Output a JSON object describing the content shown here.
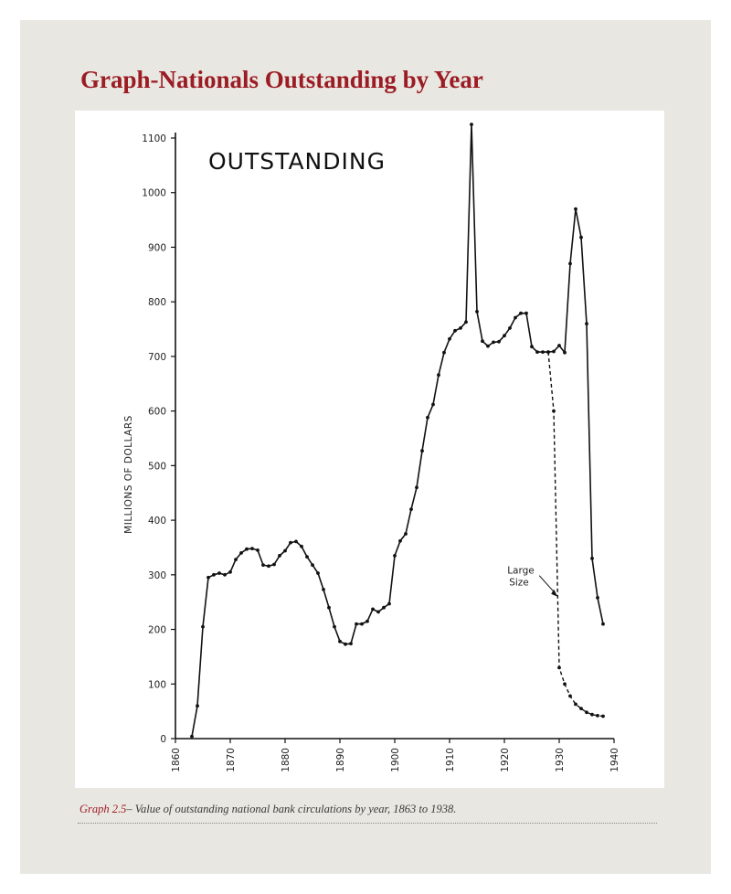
{
  "page": {
    "title": "Graph-Nationals Outstanding by Year",
    "caption_lead": "Graph 2.5",
    "caption_text": "– Value of outstanding national bank circulations by year, 1863 to 1938."
  },
  "chart_data": {
    "type": "line",
    "title": "OUTSTANDING",
    "xlabel": "",
    "ylabel": "MILLIONS OF DOLLARS",
    "xlim": [
      1860,
      1940
    ],
    "ylim": [
      0,
      1100
    ],
    "x_ticks": [
      1860,
      1870,
      1880,
      1890,
      1900,
      1910,
      1920,
      1930,
      1940
    ],
    "y_ticks": [
      0,
      100,
      200,
      300,
      400,
      500,
      600,
      700,
      800,
      900,
      1000,
      1100
    ],
    "grid": false,
    "series": [
      {
        "style": "solid",
        "points": [
          [
            1863,
            4
          ],
          [
            1864,
            60
          ],
          [
            1865,
            205
          ],
          [
            1866,
            295
          ],
          [
            1867,
            300
          ],
          [
            1868,
            303
          ],
          [
            1869,
            300
          ],
          [
            1870,
            305
          ],
          [
            1871,
            328
          ],
          [
            1872,
            340
          ],
          [
            1873,
            347
          ],
          [
            1874,
            348
          ],
          [
            1875,
            345
          ],
          [
            1876,
            318
          ],
          [
            1877,
            316
          ],
          [
            1878,
            319
          ],
          [
            1879,
            335
          ],
          [
            1880,
            344
          ],
          [
            1881,
            359
          ],
          [
            1882,
            361
          ],
          [
            1883,
            352
          ],
          [
            1884,
            333
          ],
          [
            1885,
            318
          ],
          [
            1886,
            303
          ],
          [
            1887,
            273
          ],
          [
            1888,
            240
          ],
          [
            1889,
            205
          ],
          [
            1890,
            178
          ],
          [
            1891,
            173
          ],
          [
            1892,
            174
          ],
          [
            1893,
            210
          ],
          [
            1894,
            210
          ],
          [
            1895,
            215
          ],
          [
            1896,
            237
          ],
          [
            1897,
            232
          ],
          [
            1898,
            240
          ],
          [
            1899,
            247
          ],
          [
            1900,
            335
          ],
          [
            1901,
            362
          ],
          [
            1902,
            375
          ],
          [
            1903,
            420
          ],
          [
            1904,
            460
          ],
          [
            1905,
            527
          ],
          [
            1906,
            588
          ],
          [
            1907,
            612
          ],
          [
            1908,
            666
          ],
          [
            1909,
            707
          ],
          [
            1910,
            732
          ],
          [
            1911,
            747
          ],
          [
            1912,
            752
          ],
          [
            1913,
            763
          ],
          [
            1914,
            1125
          ],
          [
            1915,
            782
          ],
          [
            1916,
            728
          ],
          [
            1917,
            719
          ],
          [
            1918,
            726
          ],
          [
            1919,
            727
          ],
          [
            1920,
            738
          ],
          [
            1921,
            752
          ],
          [
            1922,
            771
          ],
          [
            1923,
            779
          ],
          [
            1924,
            779
          ],
          [
            1925,
            718
          ],
          [
            1926,
            708
          ],
          [
            1927,
            708
          ],
          [
            1928,
            708
          ],
          [
            1929,
            709
          ],
          [
            1930,
            720
          ],
          [
            1931,
            707
          ],
          [
            1932,
            870
          ],
          [
            1933,
            970
          ],
          [
            1934,
            918
          ],
          [
            1935,
            760
          ],
          [
            1936,
            330
          ],
          [
            1937,
            258
          ],
          [
            1938,
            210
          ]
        ]
      },
      {
        "style": "dashed",
        "points": [
          [
            1928,
            708
          ],
          [
            1929,
            600
          ],
          [
            1930,
            130
          ],
          [
            1931,
            100
          ],
          [
            1932,
            78
          ],
          [
            1933,
            63
          ],
          [
            1934,
            55
          ],
          [
            1935,
            48
          ],
          [
            1936,
            44
          ],
          [
            1937,
            42
          ],
          [
            1938,
            41
          ]
        ]
      }
    ],
    "annotations": [
      {
        "text_lines": [
          "Large",
          "Size"
        ],
        "points_to": [
          1929.7,
          260
        ]
      }
    ]
  }
}
